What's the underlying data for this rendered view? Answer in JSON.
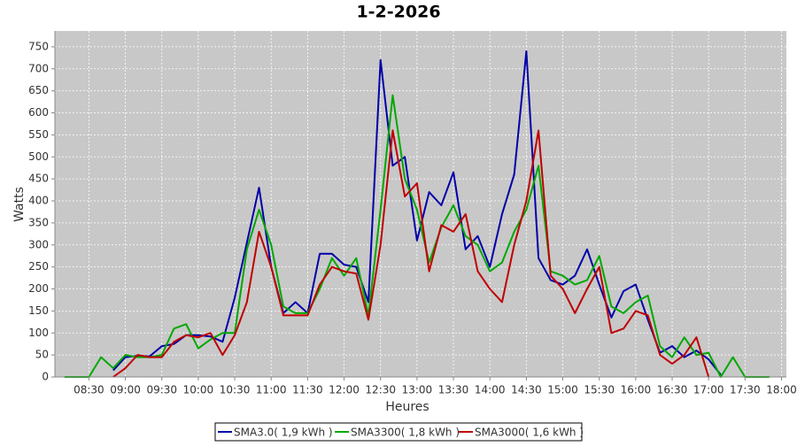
{
  "chart_data": {
    "type": "line",
    "title": "1-2-2026",
    "x_label": "Heures",
    "y_label": "Watts",
    "x": [
      490,
      500,
      510,
      520,
      530,
      540,
      550,
      560,
      570,
      580,
      590,
      600,
      610,
      620,
      630,
      640,
      650,
      660,
      670,
      680,
      690,
      700,
      710,
      720,
      730,
      740,
      750,
      760,
      770,
      780,
      790,
      800,
      810,
      820,
      830,
      840,
      850,
      860,
      870,
      880,
      890,
      900,
      910,
      920,
      930,
      940,
      950,
      960,
      970,
      980,
      990,
      1000,
      1010,
      1020,
      1030,
      1040,
      1050,
      1060,
      1070
    ],
    "series": [
      {
        "name": "SMA3.0( 1,9 kWh )",
        "color": "#0000a8",
        "values": [
          null,
          null,
          null,
          null,
          15,
          45,
          48,
          47,
          70,
          75,
          95,
          95,
          92,
          80,
          180,
          305,
          430,
          250,
          145,
          170,
          145,
          280,
          280,
          255,
          250,
          170,
          720,
          480,
          500,
          310,
          420,
          390,
          465,
          290,
          320,
          250,
          370,
          460,
          740,
          270,
          220,
          210,
          230,
          290,
          210,
          135,
          195,
          210,
          130,
          55,
          70,
          45,
          60,
          40,
          5,
          null,
          null,
          null,
          null
        ]
      },
      {
        "name": "SMA3300( 1,8 kWh )",
        "color": "#00a800",
        "values": [
          0,
          0,
          0,
          45,
          20,
          50,
          45,
          45,
          50,
          110,
          120,
          65,
          85,
          100,
          100,
          290,
          380,
          300,
          160,
          145,
          145,
          200,
          270,
          230,
          270,
          140,
          380,
          640,
          450,
          380,
          260,
          340,
          390,
          320,
          300,
          240,
          260,
          330,
          380,
          480,
          240,
          230,
          210,
          220,
          275,
          160,
          145,
          170,
          185,
          70,
          45,
          90,
          50,
          55,
          0,
          45,
          0,
          0,
          0
        ]
      },
      {
        "name": "SMA3000( 1,6 kWh )",
        "color": "#c00000",
        "values": [
          null,
          null,
          null,
          null,
          0,
          20,
          50,
          45,
          45,
          80,
          95,
          90,
          100,
          50,
          95,
          170,
          330,
          250,
          140,
          140,
          140,
          210,
          250,
          240,
          235,
          130,
          300,
          560,
          410,
          440,
          240,
          345,
          330,
          370,
          240,
          200,
          170,
          300,
          400,
          560,
          230,
          200,
          145,
          200,
          250,
          100,
          110,
          150,
          140,
          50,
          30,
          50,
          90,
          0,
          null,
          null,
          null,
          null,
          null
        ]
      }
    ],
    "xlim": [
      482,
      1084
    ],
    "ylim": [
      0,
      786
    ],
    "xticks": [
      {
        "value": 510,
        "label": "08:30"
      },
      {
        "value": 540,
        "label": "09:00"
      },
      {
        "value": 570,
        "label": "09:30"
      },
      {
        "value": 600,
        "label": "10:00"
      },
      {
        "value": 630,
        "label": "10:30"
      },
      {
        "value": 660,
        "label": "11:00"
      },
      {
        "value": 690,
        "label": "11:30"
      },
      {
        "value": 720,
        "label": "12:00"
      },
      {
        "value": 750,
        "label": "12:30"
      },
      {
        "value": 780,
        "label": "13:00"
      },
      {
        "value": 810,
        "label": "13:30"
      },
      {
        "value": 840,
        "label": "14:00"
      },
      {
        "value": 870,
        "label": "14:30"
      },
      {
        "value": 900,
        "label": "15:00"
      },
      {
        "value": 930,
        "label": "15:30"
      },
      {
        "value": 960,
        "label": "16:00"
      },
      {
        "value": 990,
        "label": "16:30"
      },
      {
        "value": 1020,
        "label": "17:00"
      },
      {
        "value": 1050,
        "label": "17:30"
      },
      {
        "value": 1080,
        "label": "18:00"
      }
    ],
    "yticks": [
      0,
      50,
      100,
      150,
      200,
      250,
      300,
      350,
      400,
      450,
      500,
      550,
      600,
      650,
      700,
      750
    ],
    "grid": true,
    "legend": "bottom"
  }
}
